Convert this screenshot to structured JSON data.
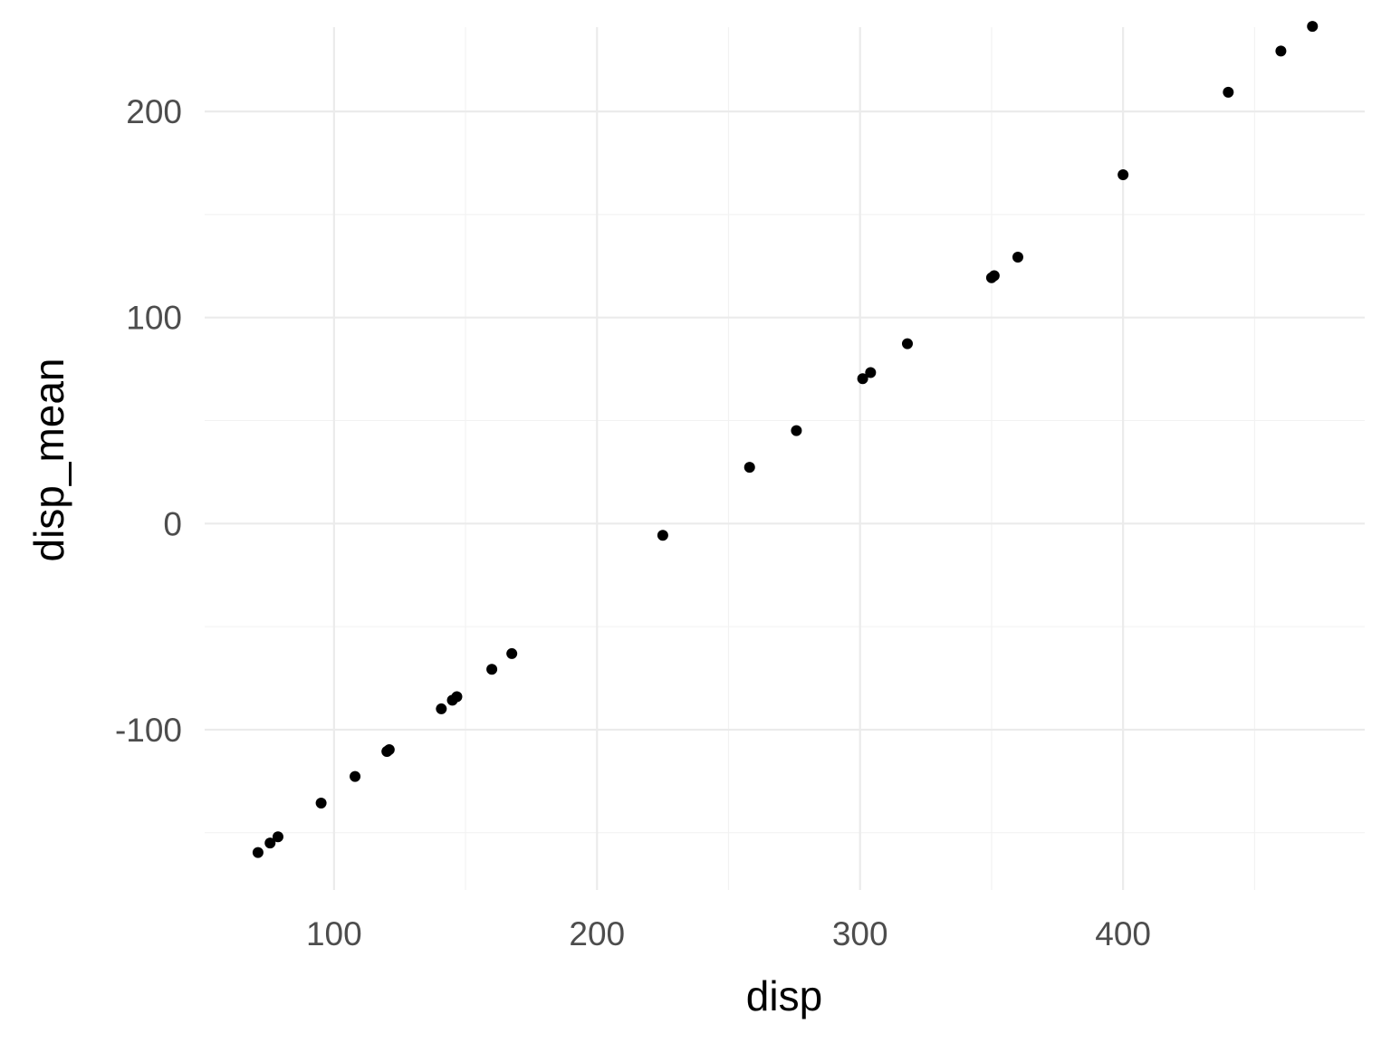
{
  "chart_data": {
    "type": "scatter",
    "title": "",
    "xlabel": "disp",
    "ylabel": "disp_mean",
    "xlim": [
      50.82,
      491.88
    ],
    "ylim": [
      -177.8,
      240.9
    ],
    "x_major_ticks": [
      100,
      200,
      300,
      400
    ],
    "x_minor_ticks": [
      150,
      250,
      350,
      450
    ],
    "y_major_ticks": [
      -100,
      0,
      100,
      200
    ],
    "y_minor_ticks": [
      -150,
      -50,
      50,
      150
    ],
    "x_tick_labels": [
      "100",
      "200",
      "300",
      "400"
    ],
    "y_tick_labels": [
      "-100",
      "0",
      "100",
      "200"
    ],
    "grid": true,
    "legend": "none",
    "point_color": "#000000",
    "points": [
      {
        "x": 71.1,
        "y": -159.6
      },
      {
        "x": 75.7,
        "y": -155.0
      },
      {
        "x": 78.7,
        "y": -152.0
      },
      {
        "x": 95.1,
        "y": -135.6
      },
      {
        "x": 108.0,
        "y": -122.7
      },
      {
        "x": 120.1,
        "y": -110.6
      },
      {
        "x": 120.3,
        "y": -110.4
      },
      {
        "x": 121.0,
        "y": -109.7
      },
      {
        "x": 140.8,
        "y": -89.9
      },
      {
        "x": 145.0,
        "y": -85.7
      },
      {
        "x": 146.7,
        "y": -84.0
      },
      {
        "x": 160.0,
        "y": -70.7
      },
      {
        "x": 167.6,
        "y": -63.1
      },
      {
        "x": 225.0,
        "y": -5.7
      },
      {
        "x": 258.0,
        "y": 27.3
      },
      {
        "x": 275.8,
        "y": 45.1
      },
      {
        "x": 301.0,
        "y": 70.3
      },
      {
        "x": 304.0,
        "y": 73.3
      },
      {
        "x": 318.0,
        "y": 87.3
      },
      {
        "x": 350.0,
        "y": 119.3
      },
      {
        "x": 351.0,
        "y": 120.3
      },
      {
        "x": 360.0,
        "y": 129.3
      },
      {
        "x": 400.0,
        "y": 169.3
      },
      {
        "x": 440.0,
        "y": 209.3
      },
      {
        "x": 460.0,
        "y": 229.3
      },
      {
        "x": 472.0,
        "y": 241.3
      }
    ]
  }
}
